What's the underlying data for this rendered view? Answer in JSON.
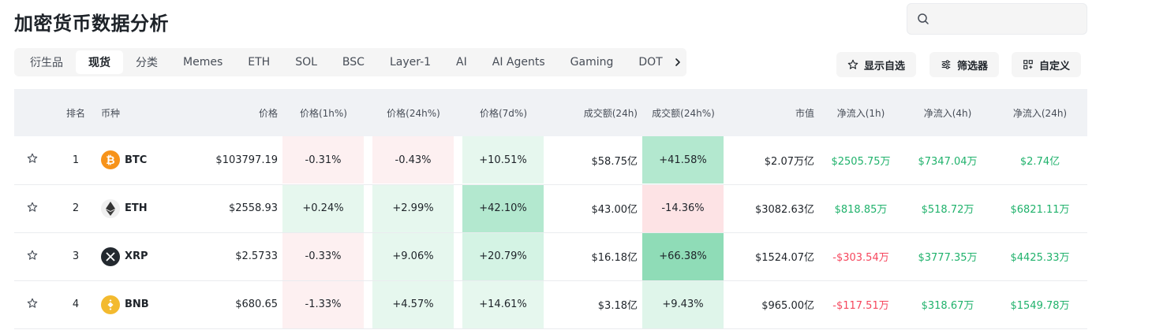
{
  "page": {
    "title": "加密货币数据分析"
  },
  "search": {
    "placeholder": ""
  },
  "tabs": [
    {
      "label": "衍生品",
      "active": false
    },
    {
      "label": "现货",
      "active": true
    },
    {
      "label": "分类",
      "active": false
    },
    {
      "label": "Memes",
      "active": false
    },
    {
      "label": "ETH",
      "active": false
    },
    {
      "label": "SOL",
      "active": false
    },
    {
      "label": "BSC",
      "active": false
    },
    {
      "label": "Layer-1",
      "active": false
    },
    {
      "label": "AI",
      "active": false
    },
    {
      "label": "AI Agents",
      "active": false
    },
    {
      "label": "Gaming",
      "active": false
    },
    {
      "label": "DOT",
      "active": false
    }
  ],
  "actions": {
    "watchlist_label": "显示自选",
    "filter_label": "筛选器",
    "customize_label": "自定义"
  },
  "table": {
    "headers": {
      "rank": "排名",
      "coin": "币种",
      "price": "价格",
      "price_1h": "价格(1h%)",
      "price_24h": "价格(24h%)",
      "price_7d": "价格(7d%)",
      "volume_24h": "成交额(24h)",
      "volume_24h_pct": "成交额(24h%)",
      "market_cap": "市值",
      "netflow_1h": "净流入(1h)",
      "netflow_4h": "净流入(4h)",
      "netflow_24h": "净流入(24h)"
    },
    "rows": [
      {
        "rank": "1",
        "symbol": "BTC",
        "icon": "bitcoin-icon",
        "icon_color": "#f7931a",
        "price": "$103797.19",
        "p1h": "-0.31%",
        "p24h": "-0.43%",
        "p7d": "+10.51%",
        "vol": "$58.75亿",
        "volpct": "+41.58%",
        "mcap": "$2.07万亿",
        "nf1h": "$2505.75万",
        "nf4h": "$7347.04万",
        "nf24h": "$2.74亿"
      },
      {
        "rank": "2",
        "symbol": "ETH",
        "icon": "ethereum-icon",
        "icon_color": "#f0f0f0",
        "price": "$2558.93",
        "p1h": "+0.24%",
        "p24h": "+2.99%",
        "p7d": "+42.10%",
        "vol": "$43.00亿",
        "volpct": "-14.36%",
        "mcap": "$3082.63亿",
        "nf1h": "$818.85万",
        "nf4h": "$518.72万",
        "nf24h": "$6821.11万"
      },
      {
        "rank": "3",
        "symbol": "XRP",
        "icon": "xrp-icon",
        "icon_color": "#23292f",
        "price": "$2.5733",
        "p1h": "-0.33%",
        "p24h": "+9.06%",
        "p7d": "+20.79%",
        "vol": "$16.18亿",
        "volpct": "+66.38%",
        "mcap": "$1524.07亿",
        "nf1h": "-$303.54万",
        "nf4h": "$3777.35万",
        "nf24h": "$4425.33万"
      },
      {
        "rank": "4",
        "symbol": "BNB",
        "icon": "bnb-icon",
        "icon_color": "#f3ba2f",
        "price": "$680.65",
        "p1h": "-1.33%",
        "p24h": "+4.57%",
        "p7d": "+14.61%",
        "vol": "$3.18亿",
        "volpct": "+9.43%",
        "mcap": "$965.00亿",
        "nf1h": "-$117.51万",
        "nf4h": "$318.67万",
        "nf24h": "$1549.78万"
      }
    ]
  }
}
